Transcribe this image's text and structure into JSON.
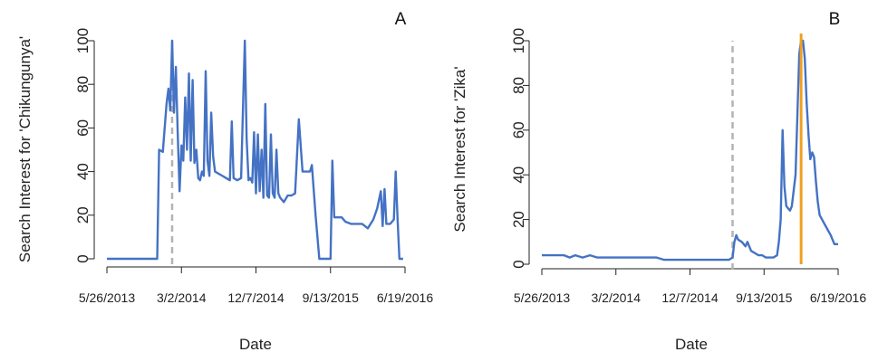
{
  "colors": {
    "line": "#4472c4",
    "dashed": "#b3b3b3",
    "vline": "#f0a020",
    "axis": "#222222"
  },
  "chart_data": [
    {
      "type": "line",
      "panel_label": "A",
      "title": "",
      "xlabel": "Date",
      "ylabel": "Search Interest for 'Chikungunya'",
      "x_tick_labels": [
        "5/26/2013",
        "3/2/2014",
        "12/7/2014",
        "9/13/2015",
        "6/19/2016"
      ],
      "x_ticks": [
        "2013-05-26",
        "2014-03-02",
        "2014-12-07",
        "2015-09-13",
        "2016-06-19"
      ],
      "xlim": [
        "2013-05-26",
        "2016-06-19"
      ],
      "ylim": [
        0,
        100
      ],
      "y_ticks": [
        0,
        20,
        40,
        60,
        80,
        100
      ],
      "grid": false,
      "dashed_vline": "2014-01-26",
      "series": [
        {
          "points": [
            [
              "2013-05-26",
              0
            ],
            [
              "2013-06-30",
              0
            ],
            [
              "2013-08-11",
              0
            ],
            [
              "2013-10-27",
              0
            ],
            [
              "2013-12-01",
              0
            ],
            [
              "2013-12-08",
              50
            ],
            [
              "2013-12-22",
              49
            ],
            [
              "2014-01-05",
              71
            ],
            [
              "2014-01-12",
              78
            ],
            [
              "2014-01-19",
              68
            ],
            [
              "2014-01-26",
              100
            ],
            [
              "2014-02-02",
              67
            ],
            [
              "2014-02-09",
              88
            ],
            [
              "2014-02-16",
              58
            ],
            [
              "2014-02-23",
              31
            ],
            [
              "2014-03-02",
              52
            ],
            [
              "2014-03-09",
              45
            ],
            [
              "2014-03-16",
              74
            ],
            [
              "2014-03-23",
              50
            ],
            [
              "2014-03-30",
              85
            ],
            [
              "2014-04-06",
              45
            ],
            [
              "2014-04-13",
              82
            ],
            [
              "2014-04-20",
              44
            ],
            [
              "2014-04-27",
              50
            ],
            [
              "2014-05-04",
              37
            ],
            [
              "2014-05-11",
              36
            ],
            [
              "2014-05-18",
              40
            ],
            [
              "2014-05-25",
              38
            ],
            [
              "2014-06-01",
              86
            ],
            [
              "2014-06-08",
              45
            ],
            [
              "2014-06-15",
              38
            ],
            [
              "2014-06-22",
              67
            ],
            [
              "2014-06-29",
              47
            ],
            [
              "2014-07-06",
              40
            ],
            [
              "2014-07-20",
              39
            ],
            [
              "2014-08-03",
              38
            ],
            [
              "2014-08-17",
              37
            ],
            [
              "2014-08-31",
              36
            ],
            [
              "2014-09-07",
              63
            ],
            [
              "2014-09-14",
              37
            ],
            [
              "2014-09-28",
              36
            ],
            [
              "2014-10-12",
              37
            ],
            [
              "2014-10-26",
              100
            ],
            [
              "2014-11-02",
              55
            ],
            [
              "2014-11-09",
              36
            ],
            [
              "2014-11-16",
              37
            ],
            [
              "2014-11-23",
              35
            ],
            [
              "2014-11-30",
              58
            ],
            [
              "2014-12-07",
              30
            ],
            [
              "2014-12-14",
              57
            ],
            [
              "2014-12-21",
              31
            ],
            [
              "2014-12-28",
              50
            ],
            [
              "2015-01-04",
              28
            ],
            [
              "2015-01-11",
              71
            ],
            [
              "2015-01-18",
              29
            ],
            [
              "2015-01-25",
              28
            ],
            [
              "2015-02-01",
              57
            ],
            [
              "2015-02-08",
              30
            ],
            [
              "2015-02-15",
              28
            ],
            [
              "2015-02-22",
              50
            ],
            [
              "2015-03-01",
              30
            ],
            [
              "2015-03-08",
              28
            ],
            [
              "2015-03-22",
              26
            ],
            [
              "2015-04-05",
              29
            ],
            [
              "2015-04-19",
              29
            ],
            [
              "2015-05-03",
              30
            ],
            [
              "2015-05-17",
              64
            ],
            [
              "2015-05-31",
              40
            ],
            [
              "2015-06-14",
              40
            ],
            [
              "2015-06-28",
              40
            ],
            [
              "2015-07-05",
              43
            ],
            [
              "2015-07-19",
              20
            ],
            [
              "2015-08-02",
              0
            ],
            [
              "2015-08-16",
              0
            ],
            [
              "2015-08-30",
              0
            ],
            [
              "2015-09-13",
              0
            ],
            [
              "2015-09-20",
              45
            ],
            [
              "2015-09-27",
              19
            ],
            [
              "2015-10-11",
              19
            ],
            [
              "2015-10-25",
              19
            ],
            [
              "2015-11-08",
              17
            ],
            [
              "2015-11-29",
              16
            ],
            [
              "2015-12-20",
              16
            ],
            [
              "2016-01-10",
              16
            ],
            [
              "2016-01-31",
              14
            ],
            [
              "2016-02-21",
              18
            ],
            [
              "2016-03-06",
              23
            ],
            [
              "2016-03-20",
              31
            ],
            [
              "2016-03-27",
              15
            ],
            [
              "2016-04-03",
              32
            ],
            [
              "2016-04-10",
              16
            ],
            [
              "2016-04-24",
              16
            ],
            [
              "2016-05-08",
              18
            ],
            [
              "2016-05-15",
              40
            ],
            [
              "2016-05-22",
              18
            ],
            [
              "2016-05-29",
              0
            ],
            [
              "2016-06-12",
              0
            ]
          ]
        }
      ]
    },
    {
      "type": "line",
      "panel_label": "B",
      "title": "",
      "xlabel": "Date",
      "ylabel": "Search Interest for 'Zika'",
      "x_tick_labels": [
        "5/26/2013",
        "3/2/2014",
        "12/7/2014",
        "9/13/2015",
        "6/19/2016"
      ],
      "x_ticks": [
        "2013-05-26",
        "2014-03-02",
        "2014-12-07",
        "2015-09-13",
        "2016-06-19"
      ],
      "xlim": [
        "2013-05-26",
        "2016-06-19"
      ],
      "ylim": [
        0,
        100
      ],
      "y_ticks": [
        0,
        20,
        40,
        60,
        80,
        100
      ],
      "grid": false,
      "dashed_vline": "2015-05-17",
      "solid_vline": "2016-01-31",
      "series": [
        {
          "points": [
            [
              "2013-05-26",
              4
            ],
            [
              "2013-07-07",
              4
            ],
            [
              "2013-08-18",
              4
            ],
            [
              "2013-09-08",
              3
            ],
            [
              "2013-09-29",
              4
            ],
            [
              "2013-10-27",
              3
            ],
            [
              "2013-11-24",
              4
            ],
            [
              "2013-12-22",
              3
            ],
            [
              "2014-01-19",
              3
            ],
            [
              "2014-02-16",
              3
            ],
            [
              "2014-03-16",
              3
            ],
            [
              "2014-04-13",
              3
            ],
            [
              "2014-05-11",
              3
            ],
            [
              "2014-06-08",
              3
            ],
            [
              "2014-07-06",
              3
            ],
            [
              "2014-08-03",
              3
            ],
            [
              "2014-08-31",
              2
            ],
            [
              "2014-10-05",
              2
            ],
            [
              "2014-11-09",
              2
            ],
            [
              "2014-12-14",
              2
            ],
            [
              "2015-01-18",
              2
            ],
            [
              "2015-02-22",
              2
            ],
            [
              "2015-03-29",
              2
            ],
            [
              "2015-05-03",
              2
            ],
            [
              "2015-05-17",
              3
            ],
            [
              "2015-05-24",
              10
            ],
            [
              "2015-05-31",
              13
            ],
            [
              "2015-06-07",
              11
            ],
            [
              "2015-06-21",
              10
            ],
            [
              "2015-06-28",
              9
            ],
            [
              "2015-07-05",
              8
            ],
            [
              "2015-07-12",
              10
            ],
            [
              "2015-07-19",
              8
            ],
            [
              "2015-07-26",
              6
            ],
            [
              "2015-08-09",
              5
            ],
            [
              "2015-08-23",
              4
            ],
            [
              "2015-09-06",
              4
            ],
            [
              "2015-09-20",
              3
            ],
            [
              "2015-10-04",
              3
            ],
            [
              "2015-10-18",
              3
            ],
            [
              "2015-11-01",
              4
            ],
            [
              "2015-11-08",
              10
            ],
            [
              "2015-11-15",
              20
            ],
            [
              "2015-11-22",
              60
            ],
            [
              "2015-11-29",
              35
            ],
            [
              "2015-12-06",
              26
            ],
            [
              "2015-12-13",
              25
            ],
            [
              "2015-12-20",
              24
            ],
            [
              "2015-12-27",
              26
            ],
            [
              "2016-01-10",
              40
            ],
            [
              "2016-01-24",
              94
            ],
            [
              "2016-01-31",
              100
            ],
            [
              "2016-02-07",
              100
            ],
            [
              "2016-02-14",
              92
            ],
            [
              "2016-02-21",
              72
            ],
            [
              "2016-02-28",
              58
            ],
            [
              "2016-03-06",
              47
            ],
            [
              "2016-03-13",
              50
            ],
            [
              "2016-03-20",
              48
            ],
            [
              "2016-03-27",
              37
            ],
            [
              "2016-04-03",
              28
            ],
            [
              "2016-04-10",
              22
            ],
            [
              "2016-04-24",
              19
            ],
            [
              "2016-05-08",
              16
            ],
            [
              "2016-05-22",
              13
            ],
            [
              "2016-06-05",
              9
            ],
            [
              "2016-06-19",
              9
            ]
          ]
        }
      ]
    }
  ]
}
